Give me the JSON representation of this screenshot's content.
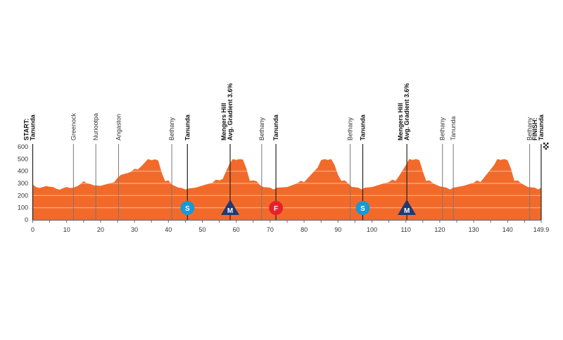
{
  "chart_data": {
    "type": "area",
    "title": "",
    "xlabel": "",
    "ylabel": "",
    "xlim": [
      0,
      149.9
    ],
    "ylim": [
      0,
      600
    ],
    "x_ticks": [
      "0",
      "10",
      "20",
      "30",
      "40",
      "50",
      "60",
      "70",
      "80",
      "90",
      "100",
      "110",
      "120",
      "130",
      "140",
      "149.9"
    ],
    "x_tick_values": [
      0,
      10,
      20,
      30,
      40,
      50,
      60,
      70,
      80,
      90,
      100,
      110,
      120,
      130,
      140,
      149.9
    ],
    "y_ticks": [
      "0",
      "100",
      "200",
      "300",
      "400",
      "500",
      "600"
    ],
    "y_tick_values": [
      0,
      100,
      200,
      300,
      400,
      500,
      600
    ],
    "grid": true,
    "colors": {
      "fill": "#f26a2a",
      "grid": "#f7b08a",
      "sprint": "#1a98d5",
      "mountain": "#1f3a70",
      "finish_sprint": "#e8202a"
    },
    "points": [
      [
        0,
        290
      ],
      [
        1,
        270
      ],
      [
        2,
        262
      ],
      [
        4,
        278
      ],
      [
        5,
        272
      ],
      [
        6,
        270
      ],
      [
        7,
        255
      ],
      [
        8,
        248
      ],
      [
        9,
        262
      ],
      [
        10,
        270
      ],
      [
        11,
        262
      ],
      [
        12,
        265
      ],
      [
        13,
        275
      ],
      [
        14,
        292
      ],
      [
        15,
        318
      ],
      [
        16,
        300
      ],
      [
        17,
        295
      ],
      [
        18,
        283
      ],
      [
        20,
        280
      ],
      [
        22,
        295
      ],
      [
        24,
        310
      ],
      [
        25,
        345
      ],
      [
        26,
        370
      ],
      [
        28,
        385
      ],
      [
        29,
        395
      ],
      [
        30,
        420
      ],
      [
        31,
        415
      ],
      [
        32,
        440
      ],
      [
        33,
        470
      ],
      [
        34,
        500
      ],
      [
        35,
        490
      ],
      [
        36,
        498
      ],
      [
        37,
        488
      ],
      [
        38,
        390
      ],
      [
        39,
        318
      ],
      [
        40,
        325
      ],
      [
        41,
        290
      ],
      [
        43,
        265
      ],
      [
        44,
        262
      ],
      [
        45,
        250
      ],
      [
        46,
        258
      ],
      [
        48,
        265
      ],
      [
        51,
        290
      ],
      [
        53,
        305
      ],
      [
        54,
        330
      ],
      [
        55,
        325
      ],
      [
        56,
        335
      ],
      [
        57,
        400
      ],
      [
        58,
        460
      ],
      [
        59,
        500
      ],
      [
        60,
        492
      ],
      [
        61,
        500
      ],
      [
        62,
        495
      ],
      [
        63,
        420
      ],
      [
        64,
        320
      ],
      [
        65,
        325
      ],
      [
        66,
        318
      ],
      [
        67,
        285
      ],
      [
        68,
        270
      ],
      [
        70,
        265
      ],
      [
        71,
        250
      ],
      [
        72,
        265
      ],
      [
        75,
        270
      ],
      [
        78,
        300
      ],
      [
        79,
        322
      ],
      [
        80,
        310
      ],
      [
        82,
        370
      ],
      [
        84,
        430
      ],
      [
        85,
        490
      ],
      [
        86,
        500
      ],
      [
        87,
        492
      ],
      [
        88,
        500
      ],
      [
        89,
        450
      ],
      [
        90,
        370
      ],
      [
        91,
        320
      ],
      [
        92,
        325
      ],
      [
        93,
        300
      ],
      [
        94,
        272
      ],
      [
        96,
        265
      ],
      [
        97,
        250
      ],
      [
        98,
        265
      ],
      [
        100,
        270
      ],
      [
        103,
        295
      ],
      [
        105,
        310
      ],
      [
        106,
        330
      ],
      [
        107,
        320
      ],
      [
        108,
        360
      ],
      [
        110,
        450
      ],
      [
        111,
        500
      ],
      [
        112,
        492
      ],
      [
        113,
        500
      ],
      [
        114,
        490
      ],
      [
        115,
        400
      ],
      [
        116,
        320
      ],
      [
        117,
        325
      ],
      [
        118,
        300
      ],
      [
        120,
        275
      ],
      [
        122,
        265
      ],
      [
        123,
        250
      ],
      [
        124,
        265
      ],
      [
        127,
        280
      ],
      [
        130,
        305
      ],
      [
        131,
        325
      ],
      [
        132,
        310
      ],
      [
        134,
        380
      ],
      [
        136,
        450
      ],
      [
        137,
        500
      ],
      [
        138,
        492
      ],
      [
        139,
        500
      ],
      [
        140,
        490
      ],
      [
        141,
        420
      ],
      [
        142,
        320
      ],
      [
        143,
        325
      ],
      [
        144,
        300
      ],
      [
        146,
        270
      ],
      [
        148,
        265
      ],
      [
        149,
        250
      ],
      [
        149.9,
        265
      ]
    ],
    "waypoints": [
      {
        "km": 0,
        "lines": [
          "START:",
          "Tanunda"
        ],
        "bold": true
      },
      {
        "km": 12,
        "lines": [
          "Greenock"
        ],
        "bold": false
      },
      {
        "km": 18.6,
        "lines": [
          "Nuriootpa"
        ],
        "bold": false
      },
      {
        "km": 25.3,
        "lines": [
          "Angaston"
        ],
        "bold": false
      },
      {
        "km": 41,
        "lines": [
          "Bethany"
        ],
        "bold": false
      },
      {
        "km": 45.6,
        "lines": [
          "Tanunda"
        ],
        "bold": true
      },
      {
        "km": 58.2,
        "lines": [
          "Mengers Hill",
          "Avg. Gradient 3.6%"
        ],
        "bold": true
      },
      {
        "km": 67.5,
        "lines": [
          "Bethany"
        ],
        "bold": false
      },
      {
        "km": 71.7,
        "lines": [
          "Tanunda"
        ],
        "bold": true
      },
      {
        "km": 93.6,
        "lines": [
          "Bethany"
        ],
        "bold": false
      },
      {
        "km": 97.3,
        "lines": [
          "Tanunda"
        ],
        "bold": true
      },
      {
        "km": 110.3,
        "lines": [
          "Mengers Hill",
          "Avg. Gradient 3.6%"
        ],
        "bold": true
      },
      {
        "km": 120.8,
        "lines": [
          "Bethany"
        ],
        "bold": false
      },
      {
        "km": 124,
        "lines": [
          "Tanunda"
        ],
        "bold": false
      },
      {
        "km": 146.5,
        "lines": [
          "Bethany"
        ],
        "bold": false
      },
      {
        "km": 149.9,
        "lines": [
          "FINISH:",
          "Tanunda"
        ],
        "bold": true
      }
    ],
    "markers": [
      {
        "km": 45.6,
        "type": "sprint",
        "letter": "S"
      },
      {
        "km": 58.2,
        "type": "mountain",
        "letter": "M"
      },
      {
        "km": 71.7,
        "type": "finish_sprint",
        "letter": "F"
      },
      {
        "km": 97.3,
        "type": "sprint",
        "letter": "S"
      },
      {
        "km": 110.3,
        "type": "mountain",
        "letter": "M"
      }
    ],
    "finish_icon": "checkered-flag-icon"
  }
}
